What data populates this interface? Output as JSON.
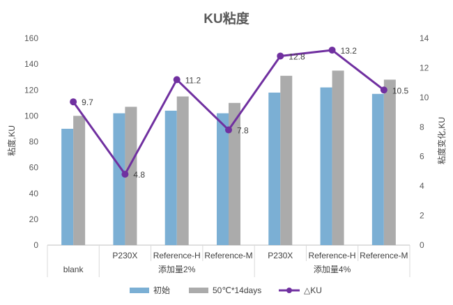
{
  "chart_data": {
    "type": "bar",
    "title": "KU粘度",
    "categories": [
      "blank",
      "P230X",
      "Reference-H",
      "Reference-M",
      "P230X",
      "Reference-H",
      "Reference-M"
    ],
    "groups": [
      {
        "label": "添加量2%",
        "start": 1,
        "end": 3
      },
      {
        "label": "添加量4%",
        "start": 4,
        "end": 6
      }
    ],
    "series": [
      {
        "name": "初始",
        "type": "bar",
        "axis": "left",
        "color": "#7BAFD4",
        "values": [
          90,
          102,
          104,
          102,
          118,
          122,
          117
        ]
      },
      {
        "name": "50℃*14days",
        "type": "bar",
        "axis": "left",
        "color": "#ABABAB",
        "values": [
          100,
          107,
          115,
          110,
          131,
          135,
          128
        ]
      },
      {
        "name": "△KU",
        "type": "line",
        "axis": "right",
        "color": "#7030A0",
        "values": [
          9.7,
          4.8,
          11.2,
          7.8,
          12.8,
          13.2,
          10.5
        ]
      }
    ],
    "ylabel": "粘度,KU",
    "y2label": "粘度变化,KU",
    "ylim": [
      0,
      160
    ],
    "y2lim": [
      0,
      14
    ],
    "yticks": [
      0,
      20,
      40,
      60,
      80,
      100,
      120,
      140,
      160
    ],
    "y2ticks": [
      0,
      2,
      4,
      6,
      8,
      10,
      12,
      14
    ],
    "grid": false,
    "legend": "bottom"
  }
}
